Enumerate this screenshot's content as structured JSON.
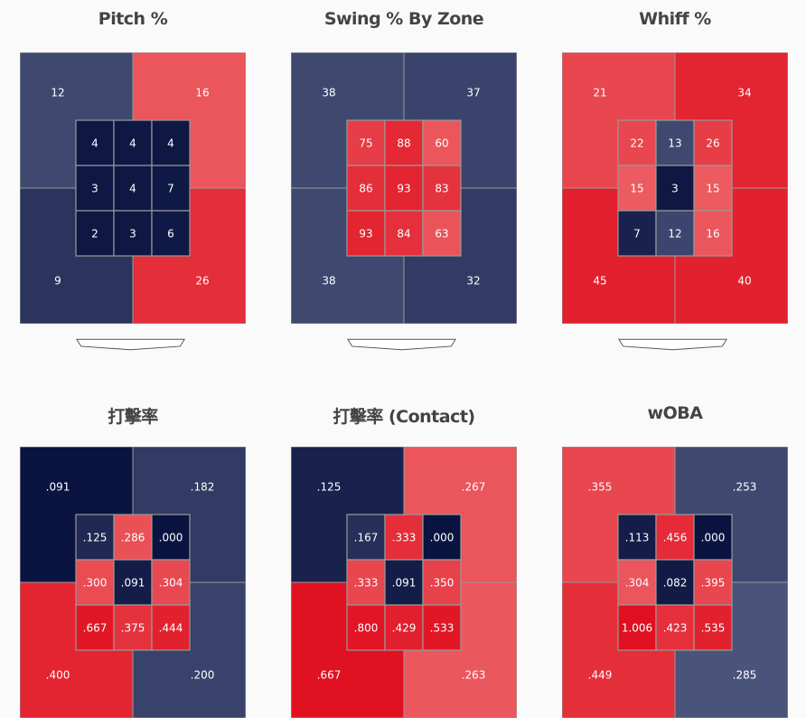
{
  "chart_data": [
    {
      "type": "heatmap",
      "title": "Pitch %",
      "outer": {
        "tl": "12",
        "tr": "16",
        "bl": "9",
        "br": "26"
      },
      "outer_scale": {
        "tl": 0.3,
        "tr": 0.72,
        "bl": 0.18,
        "br": 0.88
      },
      "inner": [
        [
          "4",
          "4",
          "4"
        ],
        [
          "3",
          "4",
          "7"
        ],
        [
          "2",
          "3",
          "6"
        ]
      ],
      "inner_scale": [
        [
          0.02,
          0.02,
          0.02
        ],
        [
          0.02,
          0.02,
          0.03
        ],
        [
          0.02,
          0.02,
          0.03
        ]
      ],
      "home_plate": true
    },
    {
      "type": "heatmap",
      "title": "Swing % By Zone",
      "outer": {
        "tl": "38",
        "tr": "37",
        "bl": "38",
        "br": "32"
      },
      "outer_scale": {
        "tl": 0.3,
        "tr": 0.27,
        "bl": 0.3,
        "br": 0.22
      },
      "inner": [
        [
          "75",
          "88",
          "60"
        ],
        [
          "86",
          "93",
          "83"
        ],
        [
          "93",
          "84",
          "63"
        ]
      ],
      "inner_scale": [
        [
          0.82,
          0.9,
          0.72
        ],
        [
          0.88,
          0.92,
          0.86
        ],
        [
          0.92,
          0.87,
          0.73
        ]
      ],
      "home_plate": true
    },
    {
      "type": "heatmap",
      "title": "Whiff %",
      "outer": {
        "tl": "21",
        "tr": "34",
        "bl": "45",
        "br": "40"
      },
      "outer_scale": {
        "tl": 0.78,
        "tr": 0.92,
        "bl": 0.94,
        "br": 0.93
      },
      "inner": [
        [
          "22",
          "13",
          "26"
        ],
        [
          "15",
          "3",
          "15"
        ],
        [
          "7",
          "12",
          "16"
        ]
      ],
      "inner_scale": [
        [
          0.78,
          0.3,
          0.82
        ],
        [
          0.7,
          0.02,
          0.7
        ],
        [
          0.08,
          0.28,
          0.72
        ]
      ],
      "home_plate": true
    },
    {
      "type": "heatmap",
      "title": "打擊率",
      "outer": {
        "tl": ".091",
        "tr": ".182",
        "bl": ".400",
        "br": ".200"
      },
      "outer_scale": {
        "tl": 0.0,
        "tr": 0.22,
        "bl": 0.92,
        "br": 0.26
      },
      "inner": [
        [
          ".125",
          ".286",
          ".000"
        ],
        [
          ".300",
          ".091",
          ".304"
        ],
        [
          ".667",
          ".375",
          ".444"
        ]
      ],
      "inner_scale": [
        [
          0.12,
          0.74,
          0.0
        ],
        [
          0.76,
          0.05,
          0.77
        ],
        [
          0.97,
          0.86,
          0.93
        ]
      ],
      "home_plate": false
    },
    {
      "type": "heatmap",
      "title": "打擊率 (Contact)",
      "outer": {
        "tl": ".125",
        "tr": ".267",
        "bl": ".667",
        "br": ".263"
      },
      "outer_scale": {
        "tl": 0.08,
        "tr": 0.72,
        "bl": 0.99,
        "br": 0.71
      },
      "inner": [
        [
          ".167",
          ".333",
          ".000"
        ],
        [
          ".333",
          ".091",
          ".350"
        ],
        [
          ".800",
          ".429",
          ".533"
        ]
      ],
      "inner_scale": [
        [
          0.16,
          0.88,
          0.0
        ],
        [
          0.78,
          0.05,
          0.8
        ],
        [
          0.98,
          0.94,
          0.97
        ]
      ],
      "home_plate": false
    },
    {
      "type": "heatmap",
      "title": "wOBA",
      "outer": {
        "tl": ".355",
        "tr": ".253",
        "bl": ".449",
        "br": ".285"
      },
      "outer_scale": {
        "tl": 0.78,
        "tr": 0.3,
        "bl": 0.88,
        "br": 0.36
      },
      "inner": [
        [
          ".113",
          ".456",
          ".000"
        ],
        [
          ".304",
          ".082",
          ".395"
        ],
        [
          "1.006",
          ".423",
          ".535"
        ]
      ],
      "inner_scale": [
        [
          0.05,
          0.89,
          0.0
        ],
        [
          0.72,
          0.04,
          0.78
        ],
        [
          1.0,
          0.87,
          0.93
        ]
      ],
      "home_plate": false
    }
  ],
  "colors": {
    "scale_low": "#0a1440",
    "scale_mid_blue": "#5a6388",
    "scale_mid_red": "#f08080",
    "scale_high": "#e01020",
    "cell_border": "#9a9a9a",
    "label": "#ffffff"
  }
}
